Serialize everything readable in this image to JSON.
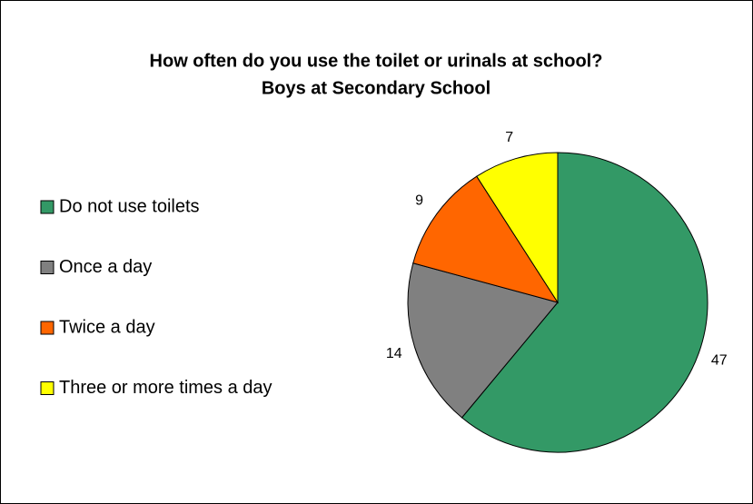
{
  "chart_data": {
    "type": "pie",
    "title": "How often do you use the toilet or urinals at school?",
    "subtitle": "Boys at Secondary School",
    "categories": [
      "Do not use toilets",
      "Once a day",
      "Twice a day",
      "Three or more times a day"
    ],
    "values": [
      47,
      14,
      9,
      7
    ],
    "colors": [
      "#339966",
      "#808080",
      "#ff6600",
      "#ffff00"
    ],
    "legend": "left"
  }
}
